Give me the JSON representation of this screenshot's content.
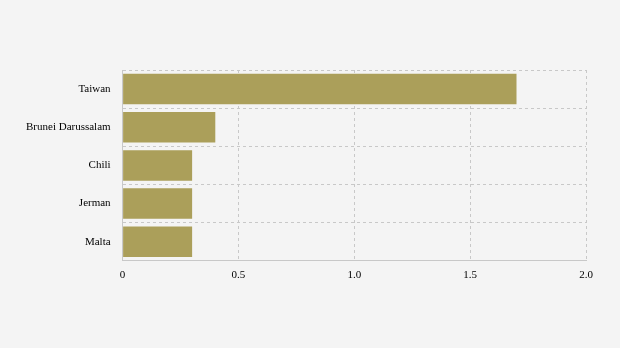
{
  "chart_data": {
    "type": "bar",
    "orientation": "horizontal",
    "categories": [
      "Taiwan",
      "Brunei Darussalam",
      "Chili",
      "Jerman",
      "Malta"
    ],
    "values": [
      1.7,
      0.4,
      0.3,
      0.3,
      0.3
    ],
    "color": "#ab9f5a",
    "xlim": [
      0,
      2
    ],
    "xticks": [
      0,
      0.5,
      {
        "value": 1,
        "label": "1.0"
      },
      1.5,
      {
        "value": 2,
        "label": "2.0"
      }
    ],
    "grid": true
  }
}
